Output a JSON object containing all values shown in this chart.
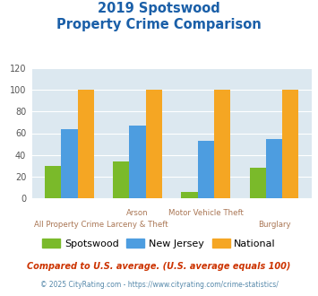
{
  "title_line1": "2019 Spotswood",
  "title_line2": "Property Crime Comparison",
  "cat_labels_line1": [
    "All Property Crime",
    "Arson",
    "Motor Vehicle Theft",
    "Burglary"
  ],
  "cat_labels_line2": [
    "",
    "Larceny & Theft",
    "",
    ""
  ],
  "spotswood": [
    30,
    34,
    6,
    28
  ],
  "new_jersey": [
    64,
    67,
    53,
    55
  ],
  "national": [
    100,
    100,
    100,
    100
  ],
  "colors": {
    "spotswood": "#7aba2a",
    "new_jersey": "#4d9de0",
    "national": "#f5a623"
  },
  "ylim": [
    0,
    120
  ],
  "yticks": [
    0,
    20,
    40,
    60,
    80,
    100,
    120
  ],
  "title_color": "#1a5fa8",
  "plot_bg_color": "#dce8f0",
  "legend_labels": [
    "Spotswood",
    "New Jersey",
    "National"
  ],
  "footnote1": "Compared to U.S. average. (U.S. average equals 100)",
  "footnote2": "© 2025 CityRating.com - https://www.cityrating.com/crime-statistics/",
  "footnote1_color": "#cc3300",
  "footnote2_color": "#5588aa",
  "xlabel_color": "#aa7755"
}
